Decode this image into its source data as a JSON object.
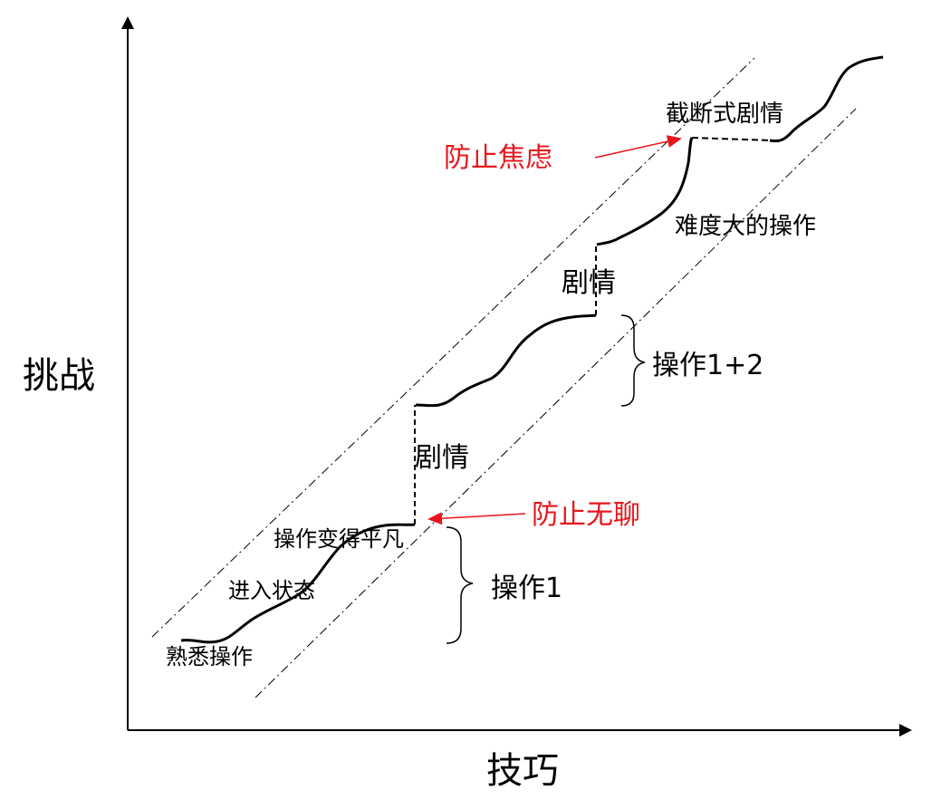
{
  "axes": {
    "x_label": "技巧",
    "y_label": "挑战"
  },
  "labels": {
    "familiar": "熟悉操作",
    "enter_state": "进入状态",
    "ordinary": "操作变得平凡",
    "plot1": "剧情",
    "plot2": "剧情",
    "op1": "操作1",
    "op12": "操作1+2",
    "hard_op": "难度大的操作",
    "cutscene": "截断式剧情",
    "prevent_boredom": "防止无聊",
    "prevent_anxiety": "防止焦虑"
  },
  "colors": {
    "annotation": "#e8161c",
    "line": "#000000"
  }
}
